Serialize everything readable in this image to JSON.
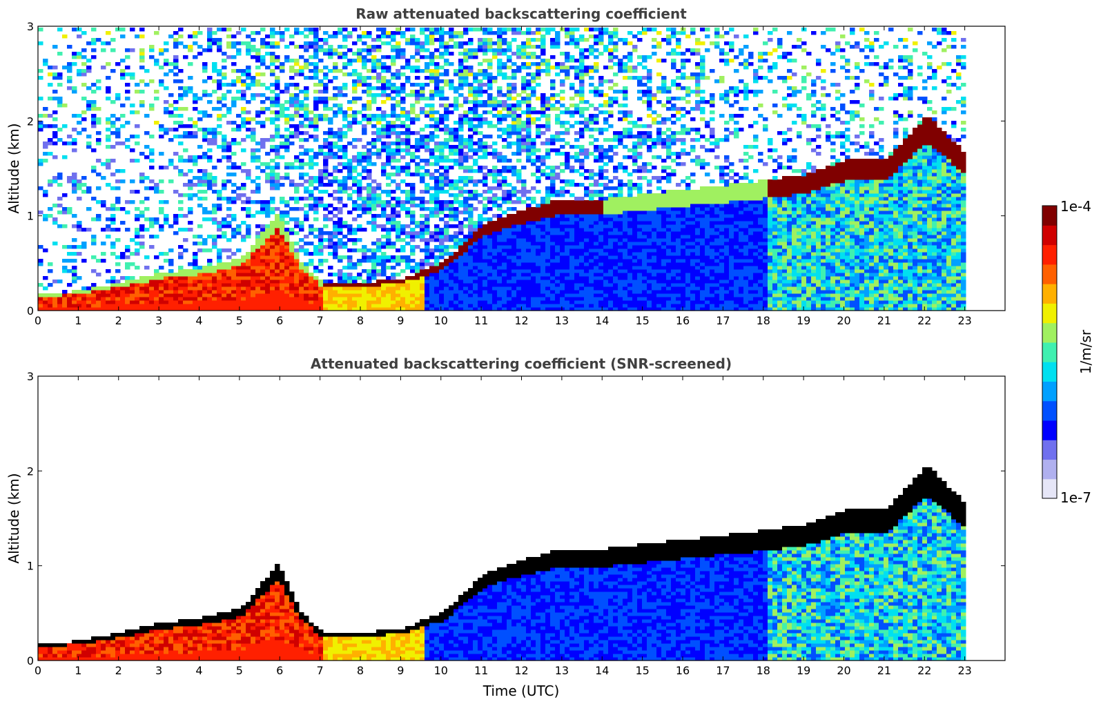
{
  "chart_data": [
    {
      "type": "heatmap",
      "title": "Raw attenuated backscattering coefficient",
      "xlabel": "",
      "ylabel": "Altitude (km)",
      "xlim": [
        0,
        24
      ],
      "ylim": [
        0,
        3
      ],
      "xticks": [
        "0",
        "1",
        "2",
        "3",
        "4",
        "5",
        "6",
        "7",
        "8",
        "9",
        "10",
        "11",
        "12",
        "13",
        "14",
        "15",
        "16",
        "17",
        "18",
        "19",
        "20",
        "21",
        "22",
        "23"
      ],
      "yticks": [
        "0",
        "1",
        "2",
        "3"
      ],
      "data_end_hour": 23,
      "layer_top": [
        {
          "t": 0,
          "h": 0.18
        },
        {
          "t": 1,
          "h": 0.22
        },
        {
          "t": 2,
          "h": 0.3
        },
        {
          "t": 3,
          "h": 0.4
        },
        {
          "t": 4,
          "h": 0.45
        },
        {
          "t": 5,
          "h": 0.55
        },
        {
          "t": 5.9,
          "h": 1.0
        },
        {
          "t": 6.5,
          "h": 0.5
        },
        {
          "t": 7,
          "h": 0.3
        },
        {
          "t": 8,
          "h": 0.3
        },
        {
          "t": 9,
          "h": 0.35
        },
        {
          "t": 10,
          "h": 0.5
        },
        {
          "t": 11,
          "h": 0.9
        },
        {
          "t": 12,
          "h": 1.05
        },
        {
          "t": 13,
          "h": 1.15
        },
        {
          "t": 14,
          "h": 1.15
        },
        {
          "t": 18.2,
          "h": 1.35
        },
        {
          "t": 19,
          "h": 1.4
        },
        {
          "t": 20,
          "h": 1.55
        },
        {
          "t": 21,
          "h": 1.55
        },
        {
          "t": 22,
          "h": 2.0
        },
        {
          "t": 23,
          "h": 1.6
        }
      ]
    },
    {
      "type": "heatmap",
      "title": "Attenuated backscattering coefficient (SNR-screened)",
      "xlabel": "Time (UTC)",
      "ylabel": "Altitude (km)",
      "xlim": [
        0,
        24
      ],
      "ylim": [
        0,
        3
      ],
      "xticks": [
        "0",
        "1",
        "2",
        "3",
        "4",
        "5",
        "6",
        "7",
        "8",
        "9",
        "10",
        "11",
        "12",
        "13",
        "14",
        "15",
        "16",
        "17",
        "18",
        "19",
        "20",
        "21",
        "22",
        "23"
      ],
      "yticks": [
        "0",
        "1",
        "2",
        "3"
      ],
      "data_end_hour": 23
    }
  ],
  "colorbar": {
    "label": "1/m/sr",
    "max_label": "1e-4",
    "min_label": "1e-7",
    "colors": [
      "#e6e6f7",
      "#b0b0ef",
      "#7070ee",
      "#0000ff",
      "#0050ff",
      "#00a0ff",
      "#00e0f0",
      "#40f0b0",
      "#a0f060",
      "#f0f000",
      "#ffb000",
      "#ff6000",
      "#ff2000",
      "#d00000",
      "#800000"
    ]
  }
}
